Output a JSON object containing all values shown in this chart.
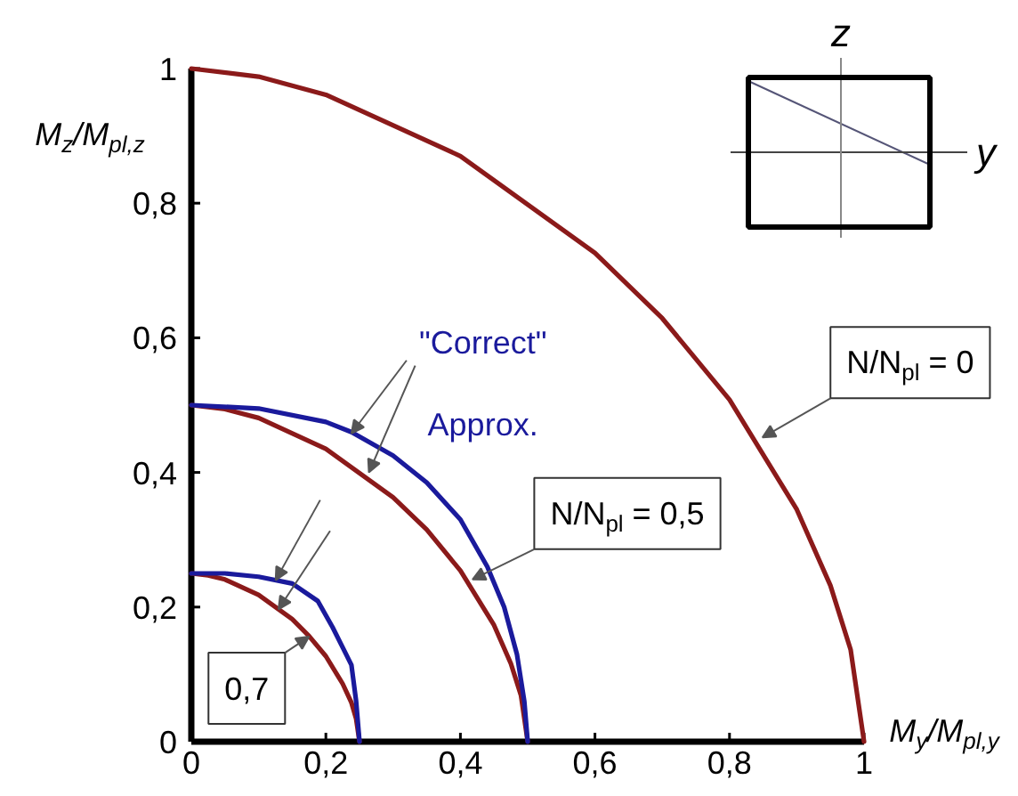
{
  "chart_data": {
    "type": "line",
    "xlabel": "M$_{y}$/M$_{pl,y}$",
    "ylabel": "M$_{z}$/M$_{pl,z}$",
    "xlim": [
      0,
      1
    ],
    "ylim": [
      0,
      1
    ],
    "xticks": [
      0,
      {
        "value": 0.2,
        "label": "0,2"
      },
      {
        "value": 0.4,
        "label": "0,4"
      },
      {
        "value": 0.6,
        "label": "0,6"
      },
      {
        "value": 0.8,
        "label": "0,8"
      },
      1
    ],
    "yticks": [
      0,
      {
        "value": 0.2,
        "label": "0,2"
      },
      {
        "value": 0.4,
        "label": "0,4"
      },
      {
        "value": 0.6,
        "label": "0,6"
      },
      {
        "value": 0.8,
        "label": "0,8"
      },
      1
    ],
    "series": [
      {
        "color": "#8b1a1a",
        "x": [
          0,
          0.1,
          0.2,
          0.4,
          0.6,
          0.7,
          0.8,
          0.9,
          0.95,
          0.98,
          1
        ],
        "values": [
          1,
          0.988,
          0.961,
          0.87,
          0.726,
          0.629,
          0.508,
          0.345,
          0.232,
          0.137,
          0
        ]
      },
      {
        "color": "#8b1a1a",
        "x": [
          0,
          0.05,
          0.1,
          0.2,
          0.3,
          0.35,
          0.4,
          0.45,
          0.475,
          0.49,
          0.5
        ],
        "values": [
          0.5,
          0.494,
          0.481,
          0.435,
          0.363,
          0.315,
          0.254,
          0.173,
          0.116,
          0.069,
          0
        ]
      },
      {
        "color": "#1a1a9c",
        "x": [
          0,
          0.1,
          0.2,
          0.238,
          0.3,
          0.35,
          0.4,
          0.44,
          0.465,
          0.484,
          0.495,
          0.5
        ],
        "values": [
          0.5,
          0.495,
          0.475,
          0.46,
          0.425,
          0.385,
          0.33,
          0.26,
          0.2,
          0.13,
          0.06,
          0
        ]
      },
      {
        "color": "#8b1a1a",
        "x": [
          0,
          0.025,
          0.05,
          0.1,
          0.15,
          0.175,
          0.2,
          0.225,
          0.238,
          0.245,
          0.25
        ],
        "values": [
          0.25,
          0.247,
          0.241,
          0.218,
          0.182,
          0.157,
          0.127,
          0.086,
          0.058,
          0.034,
          0
        ]
      },
      {
        "color": "#1a1a9c",
        "x": [
          0,
          0.05,
          0.1,
          0.15,
          0.188,
          0.21,
          0.225,
          0.238,
          0.245,
          0.25
        ],
        "values": [
          0.25,
          0.25,
          0.245,
          0.235,
          0.209,
          0.17,
          0.14,
          0.114,
          0.06,
          0
        ]
      }
    ],
    "annotations": [
      {
        "text": "\"Correct\"",
        "x": 0.238,
        "y": 0.458
      },
      {
        "text": "Approx.",
        "x": 0.264,
        "y": 0.4
      },
      {
        "text": "N/N$_{pl}$ = 0",
        "x": 0.849,
        "y": 0.452
      },
      {
        "text": "N/N$_{pl}$ = 0,5",
        "x": 0.418,
        "y": 0.241
      },
      {
        "text": "0,7",
        "x": 0.175,
        "y": 0.156
      },
      "z",
      "y"
    ]
  }
}
